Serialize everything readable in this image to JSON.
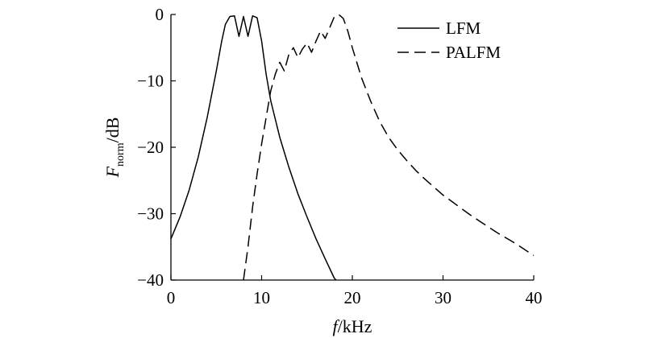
{
  "chart_data": {
    "type": "line",
    "title": "",
    "xlabel": {
      "italic": "f",
      "rest": "/kHz"
    },
    "ylabel": {
      "italic": "F",
      "subscript": "norm",
      "rest": "/dB"
    },
    "xlim": [
      0,
      40
    ],
    "ylim": [
      -40,
      0
    ],
    "xticks": [
      0,
      10,
      20,
      30,
      40
    ],
    "yticks": [
      0,
      -10,
      -20,
      -30,
      -40
    ],
    "grid": false,
    "legend_position": "top-right",
    "series": [
      {
        "name": "LFM",
        "dash": "solid",
        "points": [
          [
            0,
            -33.8
          ],
          [
            1,
            -30.5
          ],
          [
            2,
            -26.5
          ],
          [
            3,
            -21.5
          ],
          [
            4,
            -15.5
          ],
          [
            5,
            -8.5
          ],
          [
            5.6,
            -4
          ],
          [
            6,
            -1.5
          ],
          [
            6.5,
            -0.3
          ],
          [
            7,
            -0.2
          ],
          [
            7.5,
            -3.3
          ],
          [
            8,
            -0.3
          ],
          [
            8.5,
            -3.3
          ],
          [
            9,
            -0.2
          ],
          [
            9.5,
            -0.5
          ],
          [
            10,
            -4
          ],
          [
            10.5,
            -9
          ],
          [
            11,
            -13
          ],
          [
            12,
            -18.5
          ],
          [
            13,
            -23
          ],
          [
            14,
            -27
          ],
          [
            15,
            -30.5
          ],
          [
            16,
            -33.8
          ],
          [
            17,
            -36.8
          ],
          [
            18,
            -39.7
          ],
          [
            18.2,
            -40
          ]
        ]
      },
      {
        "name": "PALFM",
        "dash": "dashed",
        "points": [
          [
            8,
            -40
          ],
          [
            8.5,
            -35
          ],
          [
            9,
            -29
          ],
          [
            9.5,
            -24
          ],
          [
            10,
            -19.5
          ],
          [
            10.5,
            -15.5
          ],
          [
            11,
            -11.5
          ],
          [
            11.5,
            -9
          ],
          [
            12,
            -7.2
          ],
          [
            12.5,
            -8.5
          ],
          [
            13,
            -6
          ],
          [
            13.5,
            -5
          ],
          [
            14,
            -6.5
          ],
          [
            14.5,
            -5.2
          ],
          [
            15,
            -4.3
          ],
          [
            15.5,
            -5.7
          ],
          [
            16,
            -4
          ],
          [
            16.5,
            -2.5
          ],
          [
            17,
            -3.6
          ],
          [
            17.5,
            -2
          ],
          [
            18,
            -0.4
          ],
          [
            18.5,
            0
          ],
          [
            19,
            -0.6
          ],
          [
            19.5,
            -2.5
          ],
          [
            20,
            -5
          ],
          [
            21,
            -9.5
          ],
          [
            22,
            -13
          ],
          [
            23,
            -16.1
          ],
          [
            24,
            -18.5
          ],
          [
            25,
            -20.4
          ],
          [
            26,
            -22
          ],
          [
            27,
            -23.5
          ],
          [
            28,
            -24.8
          ],
          [
            29,
            -26
          ],
          [
            30,
            -27.2
          ],
          [
            31,
            -28.2
          ],
          [
            32,
            -29.2
          ],
          [
            33,
            -30.2
          ],
          [
            34,
            -31.1
          ],
          [
            35,
            -32
          ],
          [
            36,
            -32.9
          ],
          [
            37,
            -33.7
          ],
          [
            38,
            -34.5
          ],
          [
            39,
            -35.4
          ],
          [
            40,
            -36.3
          ]
        ]
      }
    ]
  }
}
